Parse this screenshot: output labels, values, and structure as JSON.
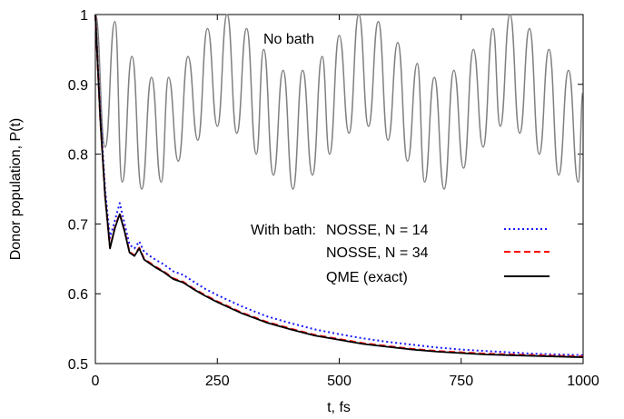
{
  "chart_data": {
    "type": "line",
    "xlabel": "t, fs",
    "ylabel": "Donor population, P(t)",
    "xlim": [
      0,
      1000
    ],
    "ylim": [
      0.5,
      1.0
    ],
    "x_ticks": [
      0,
      250,
      500,
      750,
      1000
    ],
    "x_tick_labels": [
      "0",
      "250",
      "500",
      "750",
      "1000"
    ],
    "y_ticks": [
      0.5,
      0.6,
      0.7,
      0.8,
      0.9,
      1.0
    ],
    "y_tick_labels": [
      "0.5",
      "0.6",
      "0.7",
      "0.8",
      "0.9",
      "1"
    ],
    "grid": false,
    "legend_position": "center-right",
    "legend_prefix": "With bath:",
    "annotations": [
      {
        "text": "No bath",
        "x": 335,
        "y": 0.975
      }
    ],
    "series": [
      {
        "name": "",
        "color": "#808080",
        "style": "solid",
        "x": [
          0,
          20,
          40,
          55,
          75,
          95,
          115,
          135,
          150,
          170,
          190,
          210,
          230,
          250,
          270,
          290,
          310,
          330,
          345,
          365,
          385,
          405,
          425,
          445,
          465,
          480,
          500,
          520,
          540,
          560,
          580,
          600,
          620,
          640,
          660,
          675,
          695,
          715,
          735,
          755,
          775,
          795,
          815,
          830,
          850,
          870,
          890,
          910,
          930,
          950,
          970,
          990,
          1000
        ],
        "y": [
          1.0,
          0.81,
          0.99,
          0.76,
          0.94,
          0.75,
          0.91,
          0.76,
          0.91,
          0.79,
          0.94,
          0.82,
          0.98,
          0.84,
          1.0,
          0.83,
          0.98,
          0.8,
          0.95,
          0.77,
          0.92,
          0.75,
          0.92,
          0.77,
          0.94,
          0.8,
          0.97,
          0.83,
          1.0,
          0.84,
          0.99,
          0.82,
          0.96,
          0.79,
          0.93,
          0.76,
          0.91,
          0.75,
          0.92,
          0.78,
          0.95,
          0.81,
          0.98,
          0.84,
          1.0,
          0.83,
          0.98,
          0.8,
          0.95,
          0.77,
          0.92,
          0.76,
          0.89
        ]
      },
      {
        "name": "NOSSE, N = 14",
        "color": "#1a1aff",
        "style": "dotted",
        "x": [
          0,
          10,
          20,
          30,
          40,
          50,
          60,
          70,
          80,
          90,
          100,
          110,
          125,
          140,
          160,
          180,
          200,
          225,
          250,
          275,
          300,
          350,
          400,
          450,
          500,
          550,
          600,
          650,
          700,
          750,
          800,
          850,
          900,
          950,
          1000
        ],
        "y": [
          1.0,
          0.86,
          0.75,
          0.68,
          0.705,
          0.73,
          0.7,
          0.67,
          0.665,
          0.675,
          0.66,
          0.655,
          0.648,
          0.642,
          0.632,
          0.627,
          0.618,
          0.607,
          0.598,
          0.59,
          0.582,
          0.568,
          0.558,
          0.549,
          0.542,
          0.536,
          0.531,
          0.527,
          0.523,
          0.52,
          0.518,
          0.516,
          0.514,
          0.513,
          0.512
        ]
      },
      {
        "name": "NOSSE, N = 34",
        "color": "#ff0000",
        "style": "dashed",
        "x": [
          0,
          10,
          20,
          30,
          40,
          50,
          60,
          70,
          80,
          90,
          100,
          110,
          125,
          140,
          160,
          180,
          200,
          225,
          250,
          275,
          300,
          350,
          400,
          450,
          500,
          550,
          600,
          650,
          700,
          750,
          800,
          850,
          900,
          950,
          1000
        ],
        "y": [
          1.0,
          0.85,
          0.74,
          0.666,
          0.695,
          0.715,
          0.69,
          0.66,
          0.655,
          0.666,
          0.65,
          0.645,
          0.638,
          0.632,
          0.622,
          0.617,
          0.608,
          0.598,
          0.589,
          0.581,
          0.573,
          0.56,
          0.55,
          0.541,
          0.535,
          0.529,
          0.525,
          0.521,
          0.518,
          0.516,
          0.514,
          0.513,
          0.512,
          0.511,
          0.51
        ]
      },
      {
        "name": "QME (exact)",
        "color": "#000000",
        "style": "solid",
        "x": [
          0,
          10,
          20,
          30,
          40,
          50,
          60,
          70,
          80,
          90,
          100,
          110,
          125,
          140,
          160,
          180,
          200,
          225,
          250,
          275,
          300,
          350,
          400,
          450,
          500,
          550,
          600,
          650,
          700,
          750,
          800,
          850,
          900,
          950,
          1000
        ],
        "y": [
          1.0,
          0.85,
          0.74,
          0.665,
          0.694,
          0.714,
          0.689,
          0.659,
          0.654,
          0.665,
          0.649,
          0.644,
          0.637,
          0.631,
          0.621,
          0.616,
          0.607,
          0.597,
          0.588,
          0.58,
          0.572,
          0.559,
          0.549,
          0.54,
          0.534,
          0.528,
          0.524,
          0.52,
          0.517,
          0.515,
          0.513,
          0.512,
          0.511,
          0.51,
          0.509
        ]
      }
    ]
  }
}
